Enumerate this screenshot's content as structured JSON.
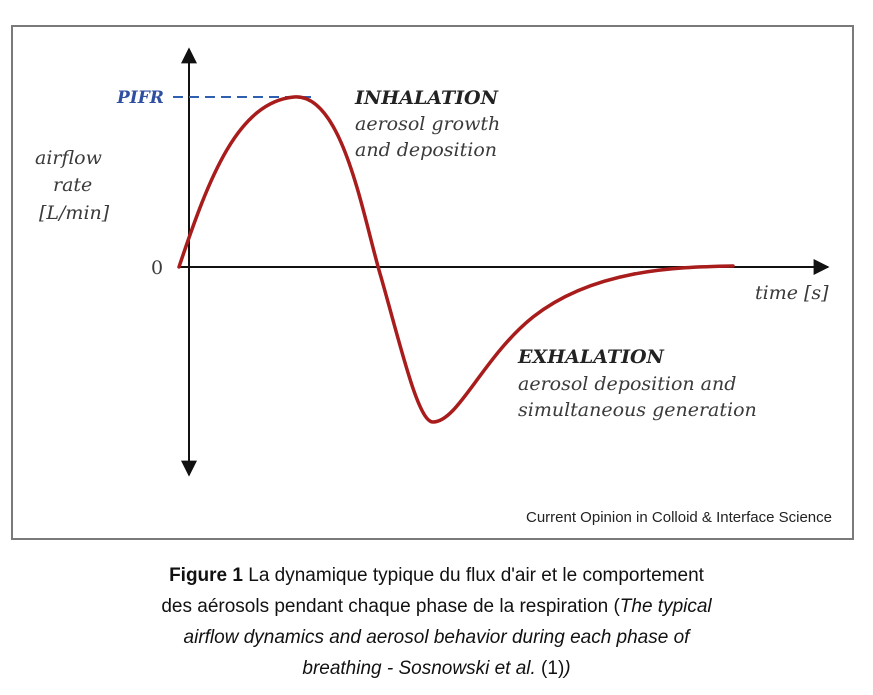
{
  "diagram": {
    "y_axis_label": [
      "airflow",
      "rate",
      "[L/min]"
    ],
    "x_axis_label": "time [s]",
    "peak_label": "PIFR",
    "zero_label": "0",
    "inhalation": {
      "title": "INHALATION",
      "lines": [
        "aerosol growth",
        "and deposition"
      ]
    },
    "exhalation": {
      "title": "EXHALATION",
      "lines": [
        "aerosol deposition and",
        "simultaneous generation"
      ]
    },
    "credit": "Current Opinion in Colloid & Interface Science",
    "colors": {
      "curve": "#a81c1c",
      "peak_dash": "#2f5fb0",
      "peak_label": "#2f4fa0",
      "axes": "#111111"
    }
  },
  "caption": {
    "figure_label": "Figure 1",
    "text_fr_line1": " La dynamique typique du flux d'air et le comportement",
    "text_fr_line2": "des aérosols pendant chaque phase de la respiration (",
    "text_en_part1": "The typical",
    "text_en_line3": "airflow dynamics and aerosol behavior during each phase of",
    "text_en_line4": "breathing - Sosnowski et al.",
    "ref": " (1)",
    "close": ")"
  }
}
